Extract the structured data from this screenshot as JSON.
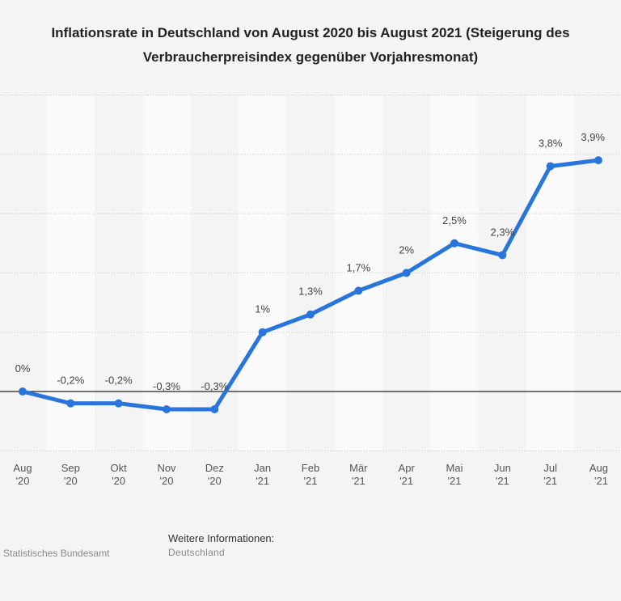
{
  "title_line1": "Inflationsrate in Deutschland von August 2020 bis August 2021 (Steigerung des",
  "title_line2": "Verbraucherpreisindex gegenüber Vorjahresmonat)",
  "source": "Statistisches Bundesamt",
  "info_heading": "Weitere Informationen:",
  "info_value": "Deutschland",
  "chart_data": {
    "type": "line",
    "categories": [
      [
        "Aug",
        "'20"
      ],
      [
        "Sep",
        "'20"
      ],
      [
        "Okt",
        "'20"
      ],
      [
        "Nov",
        "'20"
      ],
      [
        "Dez",
        "'20"
      ],
      [
        "Jan",
        "'21"
      ],
      [
        "Feb",
        "'21"
      ],
      [
        "Mär",
        "'21"
      ],
      [
        "Apr",
        "'21"
      ],
      [
        "Mai",
        "'21"
      ],
      [
        "Jun",
        "'21"
      ],
      [
        "Jul",
        "'21"
      ],
      [
        "Aug",
        "'21"
      ]
    ],
    "values": [
      0,
      -0.2,
      -0.2,
      -0.3,
      -0.3,
      1,
      1.3,
      1.7,
      2,
      2.5,
      2.3,
      3.8,
      3.9
    ],
    "labels": [
      "0%",
      "-0,2%",
      "-0,2%",
      "-0,3%",
      "-0,3%",
      "1%",
      "1,3%",
      "1,7%",
      "2%",
      "2,5%",
      "2,3%",
      "3,8%",
      "3,9%"
    ],
    "ylim": [
      -1,
      5
    ],
    "grid": true,
    "line_color": "#2876dd"
  }
}
